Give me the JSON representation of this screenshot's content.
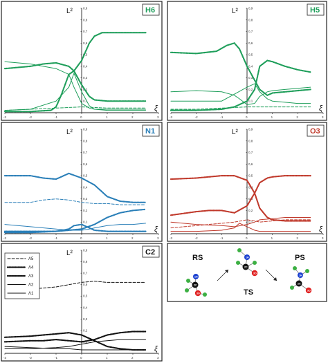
{
  "ylabel": "L²",
  "xlabel": "ξ",
  "y_ticks": [
    "0",
    "0,1",
    "0,2",
    "0,3",
    "0,4",
    "0,5",
    "0,6",
    "0,7",
    "0,8",
    "0,9"
  ],
  "x_ticks": [
    "-3",
    "-2",
    "-1",
    "0",
    "1",
    "2",
    "3"
  ],
  "legend": [
    "Λ5",
    "Λ4",
    "Λ3",
    "Λ2",
    "Λ1"
  ],
  "colors": {
    "H6": "#1e9e5a",
    "H5": "#1e9e5a",
    "N1": "#2a7fb8",
    "O3": "#c0392b",
    "C2": "#111111"
  },
  "scheme": {
    "reactant_label": "RS",
    "transition_label": "TS",
    "product_label": "PS",
    "atom_labels": [
      "1H",
      "2C",
      "3O"
    ]
  },
  "chart_data": [
    {
      "type": "line",
      "panel": "H6",
      "xlim": [
        -3,
        3
      ],
      "ylim": [
        0,
        0.9
      ],
      "series": [
        {
          "style": "dotted",
          "x": [
            -3,
            -2,
            -1.2,
            -1,
            -0.8,
            -0.5,
            -0.3,
            0,
            0.3,
            0.5,
            0.8,
            1,
            1.5,
            2,
            2.5
          ],
          "y": [
            0.01,
            0.01,
            0.02,
            0.05,
            0.15,
            0.33,
            0.36,
            0.45,
            0.6,
            0.66,
            0.69,
            0.69,
            0.69,
            0.69,
            0.69
          ]
        },
        {
          "style": "dotted",
          "x": [
            -3,
            -2,
            -1.5,
            -1,
            -0.5,
            -0.3,
            0,
            0.3,
            0.5,
            1,
            1.5,
            2,
            2.5
          ],
          "y": [
            0.38,
            0.4,
            0.42,
            0.43,
            0.4,
            0.36,
            0.24,
            0.14,
            0.11,
            0.1,
            0.1,
            0.1,
            0.1
          ]
        },
        {
          "style": "solid",
          "x": [
            -3,
            -2,
            -1.5,
            -1,
            -0.5,
            -0.3,
            0,
            0.3,
            0.5,
            1,
            1.5,
            2,
            2.5
          ],
          "y": [
            0.44,
            0.42,
            0.4,
            0.38,
            0.33,
            0.22,
            0.08,
            0.04,
            0.03,
            0.03,
            0.03,
            0.03,
            0.03
          ]
        },
        {
          "style": "solid",
          "x": [
            -3,
            -2,
            -1,
            -0.5,
            -0.3,
            0,
            0.3,
            0.5,
            1,
            2,
            2.5
          ],
          "y": [
            0.02,
            0.03,
            0.1,
            0.22,
            0.34,
            0.18,
            0.06,
            0.03,
            0.02,
            0.02,
            0.02
          ]
        },
        {
          "style": "dashed",
          "x": [
            -3,
            -2,
            -1,
            0,
            1,
            2,
            2.5
          ],
          "y": [
            0.02,
            0.03,
            0.04,
            0.05,
            0.04,
            0.04,
            0.04
          ]
        }
      ]
    },
    {
      "type": "line",
      "panel": "H5",
      "xlim": [
        -3,
        3
      ],
      "ylim": [
        0,
        0.9
      ],
      "series": [
        {
          "style": "dotted",
          "x": [
            -3,
            -2,
            -1.2,
            -0.8,
            -0.5,
            -0.3,
            0,
            0.3,
            0.5,
            0.8,
            1,
            1.5,
            2,
            2.5
          ],
          "y": [
            0.52,
            0.51,
            0.53,
            0.58,
            0.6,
            0.55,
            0.4,
            0.28,
            0.2,
            0.15,
            0.17,
            0.18,
            0.19,
            0.2
          ]
        },
        {
          "style": "dotted",
          "x": [
            -3,
            -2,
            -1,
            -0.5,
            0,
            0.3,
            0.5,
            0.8,
            1,
            1.5,
            2,
            2.5
          ],
          "y": [
            0.02,
            0.02,
            0.03,
            0.05,
            0.1,
            0.2,
            0.4,
            0.45,
            0.44,
            0.4,
            0.37,
            0.35
          ]
        },
        {
          "style": "solid",
          "x": [
            -3,
            -2,
            -1,
            -0.5,
            -0.3,
            0,
            0.3,
            0.5,
            0.8,
            1,
            1.5,
            2,
            2.5
          ],
          "y": [
            0.18,
            0.19,
            0.18,
            0.15,
            0.12,
            0.07,
            0.08,
            0.14,
            0.18,
            0.19,
            0.2,
            0.21,
            0.22
          ]
        },
        {
          "style": "solid",
          "x": [
            -3,
            -2,
            -1,
            -0.5,
            0,
            0.3,
            0.5,
            0.8,
            1,
            1.5,
            2,
            2.5
          ],
          "y": [
            0.1,
            0.1,
            0.1,
            0.16,
            0.22,
            0.25,
            0.18,
            0.12,
            0.1,
            0.09,
            0.08,
            0.08
          ]
        },
        {
          "style": "dashed",
          "x": [
            -3,
            -2,
            -1,
            0,
            1,
            2,
            2.5
          ],
          "y": [
            0.03,
            0.03,
            0.04,
            0.05,
            0.05,
            0.05,
            0.05
          ]
        }
      ]
    },
    {
      "type": "line",
      "panel": "N1",
      "xlim": [
        -3,
        3
      ],
      "ylim": [
        0,
        0.9
      ],
      "series": [
        {
          "style": "dotted",
          "x": [
            -3,
            -2,
            -1.5,
            -1,
            -0.5,
            0,
            0.5,
            1,
            1.5,
            2,
            2.5
          ],
          "y": [
            0.5,
            0.5,
            0.48,
            0.47,
            0.52,
            0.48,
            0.42,
            0.32,
            0.28,
            0.27,
            0.27
          ]
        },
        {
          "style": "dashed",
          "x": [
            -3,
            -2,
            -1.5,
            -1,
            -0.5,
            0,
            0.5,
            1,
            1.5,
            2,
            2.5
          ],
          "y": [
            0.27,
            0.27,
            0.29,
            0.3,
            0.29,
            0.27,
            0.26,
            0.26,
            0.25,
            0.25,
            0.25
          ]
        },
        {
          "style": "dotted",
          "x": [
            -3,
            -2,
            -1,
            -0.5,
            0,
            0.5,
            1,
            1.5,
            2,
            2.5
          ],
          "y": [
            0.02,
            0.02,
            0.02,
            0.03,
            0.04,
            0.08,
            0.14,
            0.18,
            0.2,
            0.21
          ]
        },
        {
          "style": "solid",
          "x": [
            -3,
            -2,
            -1,
            -0.5,
            0,
            0.3,
            0.5,
            1,
            1.5,
            2,
            2.5
          ],
          "y": [
            0.08,
            0.06,
            0.04,
            0.03,
            0.03,
            0.04,
            0.05,
            0.07,
            0.08,
            0.08,
            0.09
          ]
        },
        {
          "style": "dotted",
          "x": [
            -3,
            -2,
            -1,
            -0.5,
            -0.3,
            0,
            0.3,
            0.5,
            1,
            2,
            2.5
          ],
          "y": [
            0.01,
            0.01,
            0.02,
            0.04,
            0.07,
            0.08,
            0.05,
            0.03,
            0.02,
            0.02,
            0.02
          ]
        }
      ]
    },
    {
      "type": "line",
      "panel": "O3",
      "xlim": [
        -3,
        3
      ],
      "ylim": [
        0,
        0.9
      ],
      "series": [
        {
          "style": "dotted",
          "x": [
            -3,
            -2,
            -1.5,
            -1,
            -0.5,
            0,
            0.3,
            0.5,
            0.8,
            1,
            1.5,
            2,
            2.5
          ],
          "y": [
            0.47,
            0.48,
            0.49,
            0.5,
            0.5,
            0.46,
            0.35,
            0.22,
            0.14,
            0.12,
            0.11,
            0.11,
            0.11
          ]
        },
        {
          "style": "dotted",
          "x": [
            -3,
            -2,
            -1.5,
            -1,
            -0.5,
            0,
            0.3,
            0.5,
            0.8,
            1,
            1.5,
            2,
            2.5
          ],
          "y": [
            0.16,
            0.19,
            0.2,
            0.2,
            0.18,
            0.24,
            0.35,
            0.44,
            0.48,
            0.49,
            0.5,
            0.5,
            0.5
          ]
        },
        {
          "style": "solid",
          "x": [
            -3,
            -2,
            -1,
            -0.5,
            0,
            0.3,
            0.5,
            1,
            1.5,
            2,
            2.5
          ],
          "y": [
            0.1,
            0.08,
            0.07,
            0.06,
            0.08,
            0.1,
            0.12,
            0.13,
            0.14,
            0.14,
            0.14
          ]
        },
        {
          "style": "dashed",
          "x": [
            -3,
            -2,
            -1,
            -0.5,
            0,
            0.3,
            0.5,
            1,
            1.5,
            2,
            2.5
          ],
          "y": [
            0.05,
            0.07,
            0.09,
            0.1,
            0.12,
            0.11,
            0.1,
            0.11,
            0.12,
            0.12,
            0.12
          ]
        },
        {
          "style": "solid",
          "x": [
            -3,
            -2,
            -1,
            -0.5,
            -0.3,
            0,
            0.3,
            0.5,
            1,
            2,
            2.5
          ],
          "y": [
            0.02,
            0.02,
            0.03,
            0.05,
            0.09,
            0.06,
            0.03,
            0.02,
            0.02,
            0.02,
            0.02
          ]
        }
      ]
    },
    {
      "type": "line",
      "panel": "C2",
      "xlim": [
        -3,
        3
      ],
      "ylim": [
        0,
        0.9
      ],
      "legend": [
        "Λ5",
        "Λ4",
        "Λ3",
        "Λ2",
        "Λ1"
      ],
      "series": [
        {
          "name": "Λ5",
          "style": "dashed",
          "x": [
            -3,
            -2,
            -1.5,
            -1,
            -0.5,
            0,
            0.5,
            1,
            1.5,
            2,
            2.5
          ],
          "y": [
            0.56,
            0.56,
            0.57,
            0.58,
            0.6,
            0.62,
            0.63,
            0.62,
            0.62,
            0.62,
            0.62
          ]
        },
        {
          "name": "Λ4",
          "style": "dotted",
          "x": [
            -3,
            -2,
            -1.5,
            -1,
            -0.5,
            0,
            0.5,
            1,
            1.5,
            2,
            2.5
          ],
          "y": [
            0.14,
            0.15,
            0.16,
            0.17,
            0.18,
            0.16,
            0.11,
            0.06,
            0.04,
            0.03,
            0.03
          ]
        },
        {
          "name": "Λ3",
          "style": "dotted",
          "x": [
            -3,
            -2,
            -1.5,
            -1,
            -0.5,
            0,
            0.5,
            1,
            1.5,
            2,
            2.5
          ],
          "y": [
            0.1,
            0.11,
            0.11,
            0.12,
            0.11,
            0.1,
            0.12,
            0.16,
            0.18,
            0.19,
            0.19
          ]
        },
        {
          "name": "Λ2",
          "style": "solid",
          "x": [
            -3,
            -2,
            -1,
            -0.5,
            0,
            0.5,
            1,
            1.5,
            2,
            2.5
          ],
          "y": [
            0.04,
            0.04,
            0.05,
            0.06,
            0.08,
            0.1,
            0.11,
            0.12,
            0.12,
            0.12
          ]
        },
        {
          "name": "Λ1",
          "style": "solid",
          "x": [
            -3,
            -2,
            -1,
            -0.5,
            0,
            0.5,
            1,
            1.5,
            2,
            2.5
          ],
          "y": [
            0.06,
            0.05,
            0.04,
            0.04,
            0.03,
            0.03,
            0.03,
            0.03,
            0.03,
            0.03
          ]
        }
      ]
    }
  ]
}
